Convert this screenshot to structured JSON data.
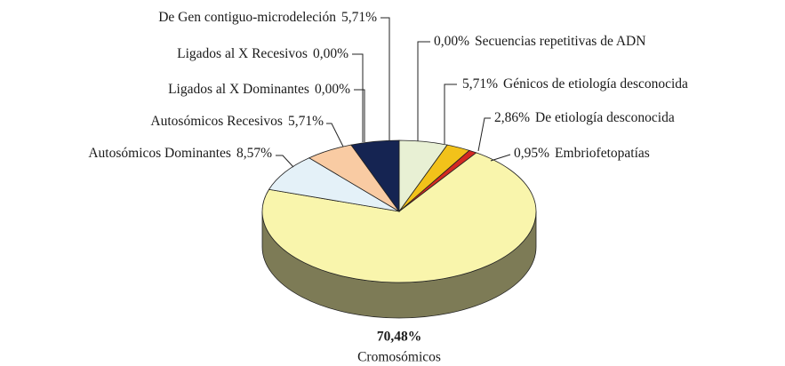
{
  "chart_data": {
    "type": "pie",
    "categories": [
      "Secuencias repetitivas de ADN",
      "Génicos de etiología desconocida",
      "De etiología desconocida",
      "Embriofetopatías",
      "Cromosómicos",
      "Autosómicos Dominantes",
      "Autosómicos Recesivos",
      "Ligados al X Dominantes",
      "Ligados al X Recesivos",
      "De Gen contiguo-microdeleción"
    ],
    "values": [
      0,
      5.71,
      2.86,
      0.95,
      70.48,
      8.57,
      5.71,
      0,
      0,
      5.71
    ],
    "value_labels": [
      "0,00%",
      "5,71%",
      "2,86%",
      "0,95%",
      "70,48%",
      "8,57%",
      "5,71%",
      "0,00%",
      "0,00%",
      "5,71%"
    ],
    "colors": [
      "#7f7f7f",
      "#e8f0d4",
      "#f2c21a",
      "#d42a22",
      "#f9f5ac",
      "#e4f1f8",
      "#f9cba3",
      "#9999cc",
      "#cc99cc",
      "#152452"
    ]
  }
}
